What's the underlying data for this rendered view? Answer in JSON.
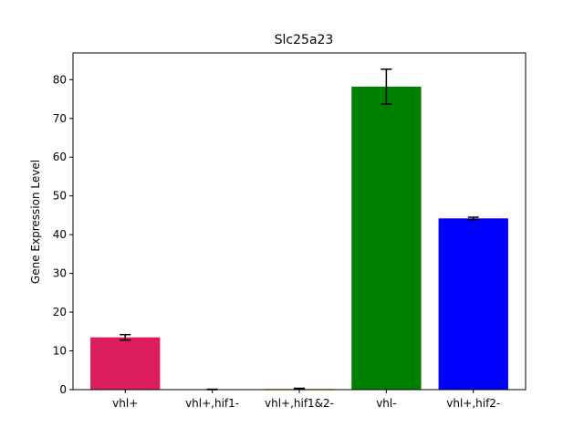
{
  "chart_data": {
    "type": "bar",
    "title": "Slc25a23",
    "xlabel": "",
    "ylabel": "Gene Expression Level",
    "categories": [
      "vhl+",
      "vhl+,hif1-",
      "vhl+,hif1&2-",
      "vhl-",
      "vhl+,hif2-"
    ],
    "values": [
      13.5,
      0.05,
      0.2,
      78.2,
      44.2
    ],
    "errors": [
      0.7,
      0.05,
      0.15,
      4.5,
      0.3
    ],
    "colors": [
      "#dc1e5f",
      "#808080",
      "#ff8c00",
      "#008000",
      "#0000ff"
    ],
    "ylim": [
      0,
      86.9
    ],
    "yticks": [
      0,
      10,
      20,
      30,
      40,
      50,
      60,
      70,
      80
    ],
    "grid": false,
    "legend": "none"
  }
}
